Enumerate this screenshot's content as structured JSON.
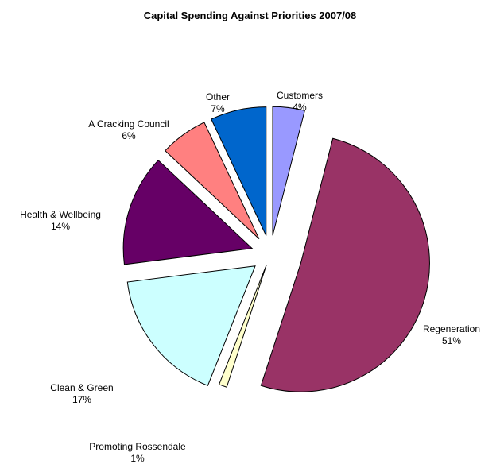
{
  "chart_data": {
    "type": "pie",
    "title": "Capital Spending Against Priorities 2007/08",
    "slices": [
      {
        "label": "Customers",
        "value": 4,
        "value_label": "4%",
        "color": "#9999ff"
      },
      {
        "label": "Regeneration",
        "value": 51,
        "value_label": "51%",
        "color": "#993366"
      },
      {
        "label": "Promoting Rossendale",
        "value": 1,
        "value_label": "1%",
        "color": "#ffffcc"
      },
      {
        "label": "Clean & Green",
        "value": 17,
        "value_label": "17%",
        "color": "#ccffff"
      },
      {
        "label": "Health & Wellbeing",
        "value": 14,
        "value_label": "14%",
        "color": "#660066"
      },
      {
        "label": "A Cracking Council",
        "value": 6,
        "value_label": "6%",
        "color": "#ff8080"
      },
      {
        "label": "Other",
        "value": 7,
        "value_label": "7%",
        "color": "#0066cc"
      }
    ],
    "exploded": true,
    "start": "12 o'clock",
    "direction": "clockwise",
    "legend": "none"
  }
}
